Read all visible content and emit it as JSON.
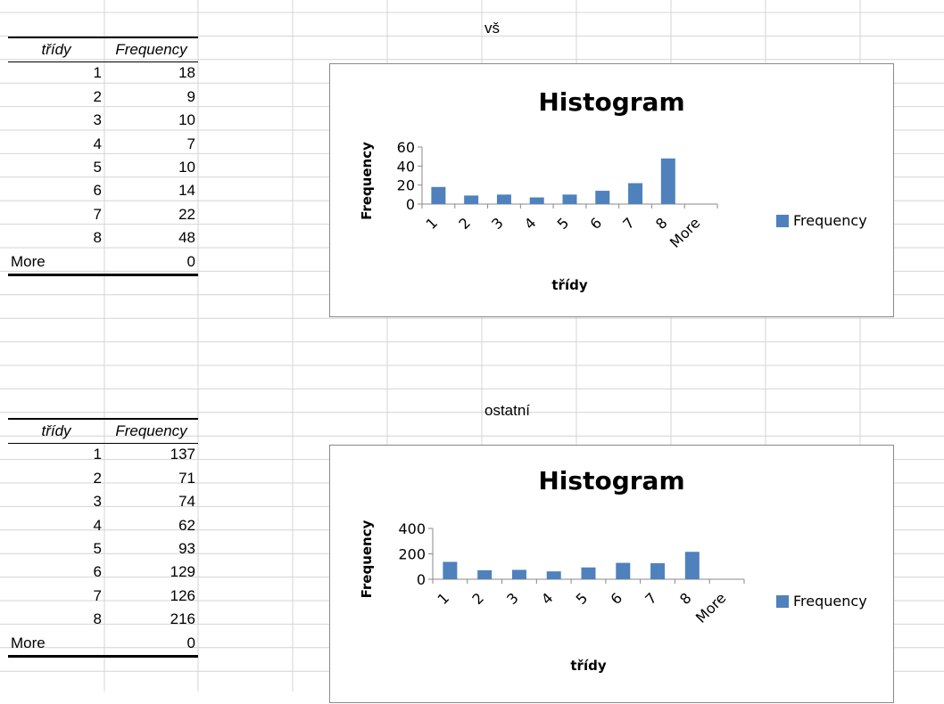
{
  "sheet": {
    "labels": {
      "top": "vš",
      "bottom": "ostatní"
    }
  },
  "table_top": {
    "headers": [
      "třídy",
      "Frequency"
    ],
    "rows": [
      {
        "bin": "1",
        "freq": "18"
      },
      {
        "bin": "2",
        "freq": "9"
      },
      {
        "bin": "3",
        "freq": "10"
      },
      {
        "bin": "4",
        "freq": "7"
      },
      {
        "bin": "5",
        "freq": "10"
      },
      {
        "bin": "6",
        "freq": "14"
      },
      {
        "bin": "7",
        "freq": "22"
      },
      {
        "bin": "8",
        "freq": "48"
      },
      {
        "bin": "More",
        "freq": "0"
      }
    ]
  },
  "table_bottom": {
    "headers": [
      "třídy",
      "Frequency"
    ],
    "rows": [
      {
        "bin": "1",
        "freq": "137"
      },
      {
        "bin": "2",
        "freq": "71"
      },
      {
        "bin": "3",
        "freq": "74"
      },
      {
        "bin": "4",
        "freq": "62"
      },
      {
        "bin": "5",
        "freq": "93"
      },
      {
        "bin": "6",
        "freq": "129"
      },
      {
        "bin": "7",
        "freq": "126"
      },
      {
        "bin": "8",
        "freq": "216"
      },
      {
        "bin": "More",
        "freq": "0"
      }
    ]
  },
  "colors": {
    "bar": "#4f81bd",
    "grid": "#d4d4d4",
    "axis": "#888888"
  },
  "chart_data": [
    {
      "type": "bar",
      "title": "Histogram",
      "xlabel": "třídy",
      "ylabel": "Frequency",
      "categories": [
        "1",
        "2",
        "3",
        "4",
        "5",
        "6",
        "7",
        "8",
        "More"
      ],
      "series": [
        {
          "name": "Frequency",
          "values": [
            18,
            9,
            10,
            7,
            10,
            14,
            22,
            48,
            0
          ]
        }
      ],
      "yticks": [
        "0",
        "20",
        "40",
        "60"
      ],
      "ylim": [
        0,
        60
      ],
      "legend": "right",
      "grid": false
    },
    {
      "type": "bar",
      "title": "Histogram",
      "xlabel": "třídy",
      "ylabel": "Frequency",
      "categories": [
        "1",
        "2",
        "3",
        "4",
        "5",
        "6",
        "7",
        "8",
        "More"
      ],
      "series": [
        {
          "name": "Frequency",
          "values": [
            137,
            71,
            74,
            62,
            93,
            129,
            126,
            216,
            0
          ]
        }
      ],
      "yticks": [
        "0",
        "200",
        "400"
      ],
      "ylim": [
        0,
        400
      ],
      "legend": "right",
      "grid": false
    }
  ]
}
